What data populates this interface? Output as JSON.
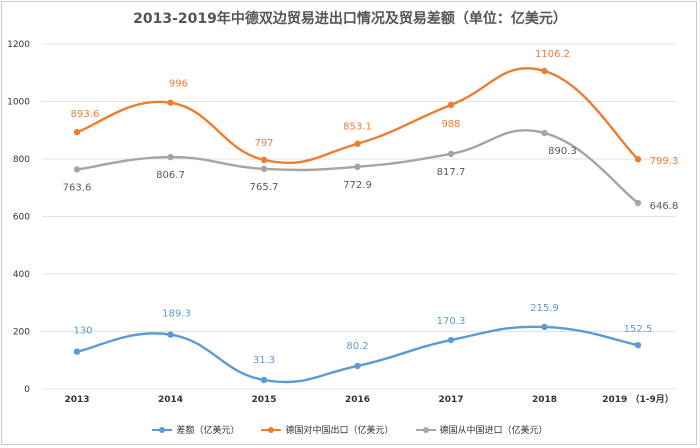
{
  "chart_data": {
    "type": "line",
    "title": "2013-2019年中德双边贸易进出口情况及贸易差额（单位：亿美元）",
    "categories": [
      "2013",
      "2014",
      "2015",
      "2016",
      "2017",
      "2018",
      "2019 （1-9月）"
    ],
    "ylim": [
      0,
      1200
    ],
    "yticks": [
      0,
      200,
      400,
      600,
      800,
      1000,
      1200
    ],
    "grid": true,
    "legend_position": "bottom",
    "series": [
      {
        "name": "差额（亿美元）",
        "color": "#5b9bd5",
        "values": [
          130,
          189.3,
          31.3,
          80.2,
          170.3,
          215.9,
          152.5
        ],
        "labels": [
          "130",
          "189.3",
          "31.3",
          "80.2",
          "170.3",
          "215.9",
          "152.5"
        ]
      },
      {
        "name": "德国对中国出口（亿美元）",
        "color": "#ed7d31",
        "values": [
          893.6,
          996,
          797,
          853.1,
          988,
          1106.2,
          799.3
        ],
        "labels": [
          "893.6",
          "996",
          "797",
          "853.1",
          "988",
          "1106.2",
          "799.3"
        ]
      },
      {
        "name": "德国从中国进口（亿美元）",
        "color": "#a5a5a5",
        "values": [
          763.6,
          806.7,
          765.7,
          772.9,
          817.7,
          890.3,
          646.8
        ],
        "labels": [
          "763.6",
          "806.7",
          "765.7",
          "772.9",
          "817.7",
          "890.3",
          "646.8"
        ]
      }
    ]
  }
}
